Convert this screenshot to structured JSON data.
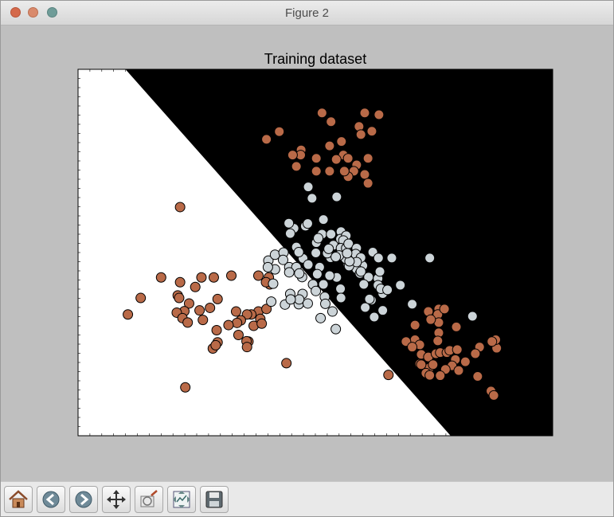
{
  "window": {
    "title": "Figure 2"
  },
  "colors": {
    "class_a": "#b96a48",
    "class_b": "#ccd4d8",
    "region_a": "#ffffff",
    "region_b": "#000000",
    "frame_bg": "#bfbfbf"
  },
  "toolbar": {
    "buttons": [
      {
        "name": "home-button",
        "icon": "home-icon"
      },
      {
        "name": "back-button",
        "icon": "back-arrow-icon"
      },
      {
        "name": "forward-button",
        "icon": "forward-arrow-icon"
      },
      {
        "name": "pan-button",
        "icon": "move-arrows-icon"
      },
      {
        "name": "zoom-button",
        "icon": "zoom-rect-icon"
      },
      {
        "name": "configure-subplots-button",
        "icon": "subplots-icon"
      },
      {
        "name": "save-button",
        "icon": "floppy-disk-icon"
      }
    ]
  },
  "chart_data": {
    "type": "scatter",
    "title": "Training dataset",
    "xlabel": "",
    "ylabel": "",
    "xlim": [
      0,
      10
    ],
    "ylim": [
      0,
      10
    ],
    "ticks_visible": false,
    "decision_regions": [
      {
        "class": 0,
        "color": "#ffffff",
        "polygon": [
          [
            0,
            10
          ],
          [
            1,
            10
          ],
          [
            7.85,
            0
          ],
          [
            0,
            0
          ]
        ]
      },
      {
        "class": 1,
        "color": "#000000",
        "polygon": [
          [
            1,
            10
          ],
          [
            10,
            10
          ],
          [
            10,
            0
          ],
          [
            7.85,
            0
          ]
        ]
      }
    ],
    "series": [
      {
        "class": 0,
        "color": "#b96a48",
        "points": [
          [
            4.24,
            8.3
          ],
          [
            5.14,
            8.81
          ],
          [
            5.33,
            8.57
          ],
          [
            6.04,
            8.81
          ],
          [
            6.34,
            8.76
          ],
          [
            5.92,
            8.44
          ],
          [
            5.96,
            8.22
          ],
          [
            6.19,
            8.31
          ],
          [
            5.55,
            8.03
          ],
          [
            3.97,
            8.09
          ],
          [
            4.7,
            7.8
          ],
          [
            4.69,
            7.66
          ],
          [
            4.52,
            7.66
          ],
          [
            5.3,
            7.91
          ],
          [
            5.59,
            7.66
          ],
          [
            5.69,
            7.57
          ],
          [
            6.11,
            7.57
          ],
          [
            5.02,
            7.57
          ],
          [
            5.44,
            7.54
          ],
          [
            5.87,
            7.39
          ],
          [
            5.81,
            7.22
          ],
          [
            4.6,
            7.35
          ],
          [
            6.04,
            7.13
          ],
          [
            5.02,
            7.22
          ],
          [
            5.3,
            7.22
          ],
          [
            5.69,
            7.07
          ],
          [
            5.61,
            7.22
          ],
          [
            6.11,
            6.89
          ],
          [
            2.15,
            6.24
          ],
          [
            1.75,
            4.32
          ],
          [
            2.15,
            4.19
          ],
          [
            2.6,
            4.32
          ],
          [
            2.86,
            4.32
          ],
          [
            3.23,
            4.37
          ],
          [
            3.8,
            4.37
          ],
          [
            4.02,
            4.32
          ],
          [
            4.04,
            4.13
          ],
          [
            3.96,
            4.19
          ],
          [
            2.1,
            3.83
          ],
          [
            2.47,
            4.06
          ],
          [
            2.13,
            3.76
          ],
          [
            1.32,
            3.76
          ],
          [
            2.94,
            3.73
          ],
          [
            2.34,
            3.61
          ],
          [
            2.78,
            3.49
          ],
          [
            2.56,
            3.42
          ],
          [
            2.24,
            3.4
          ],
          [
            2.08,
            3.36
          ],
          [
            3.33,
            3.39
          ],
          [
            3.8,
            3.39
          ],
          [
            3.97,
            3.46
          ],
          [
            3.65,
            3.31
          ],
          [
            3.56,
            3.31
          ],
          [
            3.84,
            3.19
          ],
          [
            3.43,
            3.15
          ],
          [
            3.35,
            3.08
          ],
          [
            2.2,
            3.21
          ],
          [
            1.05,
            3.31
          ],
          [
            2.31,
            3.09
          ],
          [
            2.63,
            3.16
          ],
          [
            3.17,
            3.02
          ],
          [
            3.7,
            3.0
          ],
          [
            2.92,
            2.88
          ],
          [
            3.38,
            2.75
          ],
          [
            3.87,
            3.06
          ],
          [
            2.94,
            2.55
          ],
          [
            2.84,
            2.38
          ],
          [
            2.9,
            2.47
          ],
          [
            3.59,
            2.57
          ],
          [
            3.55,
            2.58
          ],
          [
            3.56,
            2.42
          ],
          [
            4.39,
            1.98
          ],
          [
            2.26,
            1.32
          ],
          [
            6.54,
            1.66
          ],
          [
            7.38,
            3.39
          ],
          [
            7.6,
            3.46
          ],
          [
            7.58,
            3.31
          ],
          [
            7.6,
            3.09
          ],
          [
            7.1,
            3.02
          ],
          [
            7.72,
            3.46
          ],
          [
            7.43,
            3.17
          ],
          [
            7.97,
            2.97
          ],
          [
            7.6,
            2.81
          ],
          [
            7.1,
            2.62
          ],
          [
            7.2,
            2.48
          ],
          [
            7.58,
            2.59
          ],
          [
            6.91,
            2.57
          ],
          [
            7.04,
            2.42
          ],
          [
            7.23,
            2.22
          ],
          [
            7.38,
            2.15
          ],
          [
            7.54,
            2.24
          ],
          [
            7.63,
            2.27
          ],
          [
            7.77,
            2.27
          ],
          [
            7.83,
            2.33
          ],
          [
            7.99,
            2.35
          ],
          [
            8.46,
            2.42
          ],
          [
            8.37,
            2.24
          ],
          [
            8.82,
            2.39
          ],
          [
            8.8,
            2.62
          ],
          [
            8.72,
            2.57
          ],
          [
            7.95,
            2.08
          ],
          [
            7.88,
            1.91
          ],
          [
            8.02,
            1.78
          ],
          [
            8.16,
            2.02
          ],
          [
            7.74,
            1.81
          ],
          [
            8.42,
            1.62
          ],
          [
            7.4,
            1.85
          ],
          [
            7.63,
            1.64
          ],
          [
            7.2,
            1.96
          ],
          [
            7.48,
            1.94
          ],
          [
            7.23,
            1.94
          ],
          [
            7.33,
            1.71
          ],
          [
            8.7,
            1.22
          ],
          [
            8.76,
            1.1
          ],
          [
            7.41,
            1.65
          ]
        ]
      },
      {
        "class": 1,
        "color": "#ccd4d8",
        "points": [
          [
            4.85,
            6.79
          ],
          [
            4.93,
            6.48
          ],
          [
            5.45,
            6.52
          ],
          [
            5.17,
            5.9
          ],
          [
            4.79,
            5.72
          ],
          [
            5.54,
            5.57
          ],
          [
            5.14,
            5.5
          ],
          [
            5.33,
            5.5
          ],
          [
            5.53,
            5.37
          ],
          [
            5.65,
            5.46
          ],
          [
            5.59,
            5.33
          ],
          [
            5.38,
            5.2
          ],
          [
            5.54,
            5.12
          ],
          [
            5.65,
            5.12
          ],
          [
            5.7,
            5.24
          ],
          [
            5.87,
            5.12
          ],
          [
            5.85,
            4.96
          ],
          [
            6.21,
            5.01
          ],
          [
            6.33,
            4.85
          ],
          [
            6.61,
            4.85
          ],
          [
            7.41,
            4.85
          ],
          [
            6.0,
            4.64
          ],
          [
            5.69,
            4.67
          ],
          [
            5.87,
            4.55
          ],
          [
            5.94,
            4.43
          ],
          [
            6.12,
            4.33
          ],
          [
            6.32,
            4.29
          ],
          [
            6.32,
            4.11
          ],
          [
            6.02,
            4.13
          ],
          [
            5.45,
            4.32
          ],
          [
            5.3,
            4.37
          ],
          [
            5.71,
            4.63
          ],
          [
            5.96,
            4.86
          ],
          [
            5.32,
            4.86
          ],
          [
            5.01,
            4.99
          ],
          [
            4.6,
            5.15
          ],
          [
            4.74,
            4.84
          ],
          [
            4.45,
            4.6
          ],
          [
            4.6,
            4.6
          ],
          [
            4.45,
            4.46
          ],
          [
            5.09,
            4.6
          ],
          [
            4.72,
            4.33
          ],
          [
            4.95,
            4.13
          ],
          [
            5.17,
            4.13
          ],
          [
            5.01,
            3.95
          ],
          [
            5.2,
            3.79
          ],
          [
            5.53,
            4.01
          ],
          [
            5.54,
            3.76
          ],
          [
            6.18,
            3.7
          ],
          [
            6.42,
            3.88
          ],
          [
            6.05,
            3.5
          ],
          [
            6.42,
            3.42
          ],
          [
            6.24,
            3.24
          ],
          [
            5.21,
            3.6
          ],
          [
            4.66,
            4.43
          ],
          [
            4.15,
            4.54
          ],
          [
            4.11,
            4.15
          ],
          [
            4.01,
            4.78
          ],
          [
            4.15,
            4.94
          ],
          [
            4.33,
            5.0
          ],
          [
            4.32,
            4.8
          ],
          [
            4.0,
            4.6
          ],
          [
            4.07,
            3.66
          ],
          [
            4.65,
            3.59
          ],
          [
            4.36,
            3.58
          ],
          [
            7.04,
            3.59
          ],
          [
            8.31,
            3.26
          ],
          [
            5.43,
            2.91
          ],
          [
            5.11,
            3.21
          ],
          [
            4.73,
            3.87
          ],
          [
            4.66,
            3.72
          ],
          [
            4.47,
            3.87
          ],
          [
            4.48,
            3.72
          ],
          [
            4.84,
            3.61
          ],
          [
            5.36,
            3.39
          ],
          [
            5.96,
            4.48
          ],
          [
            6.36,
            4.48
          ],
          [
            6.14,
            3.73
          ],
          [
            6.38,
            4.01
          ],
          [
            6.52,
            3.98
          ],
          [
            6.79,
            4.11
          ],
          [
            4.65,
            5.01
          ],
          [
            5.64,
            4.83
          ],
          [
            5.87,
            4.74
          ],
          [
            5.72,
            4.76
          ],
          [
            5.5,
            4.92
          ],
          [
            5.67,
            4.98
          ],
          [
            5.25,
            4.98
          ],
          [
            5.43,
            4.88
          ],
          [
            5.28,
            5.1
          ],
          [
            5.02,
            5.27
          ],
          [
            5.06,
            5.39
          ],
          [
            5.04,
            4.41
          ],
          [
            4.85,
            4.67
          ],
          [
            4.55,
            5.66
          ],
          [
            4.84,
            5.79
          ],
          [
            4.44,
            5.8
          ],
          [
            4.47,
            5.52
          ]
        ]
      }
    ]
  }
}
